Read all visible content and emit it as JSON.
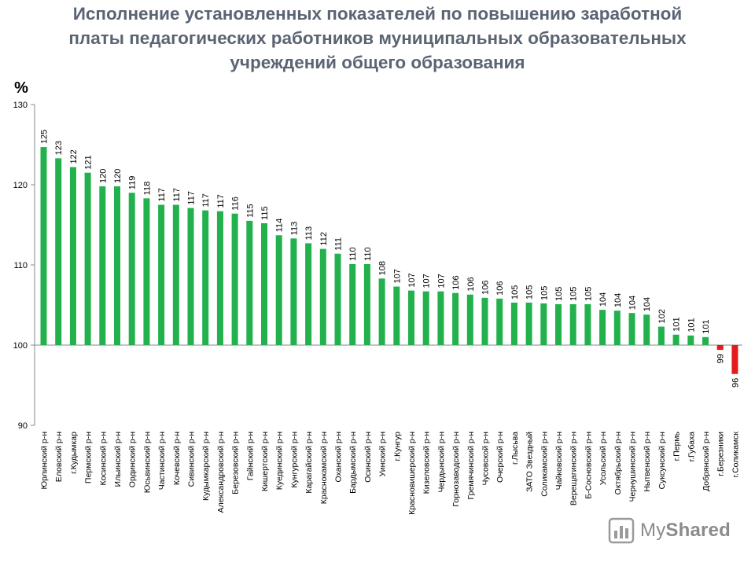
{
  "chart_data": {
    "type": "bar",
    "title": [
      "Исполнение установленных показателей по повышению заработной",
      "платы педагогических работников муниципальных образовательных",
      "учреждений общего образования"
    ],
    "ylabel": "%",
    "xlabel": "",
    "ylim": [
      90,
      130
    ],
    "yticks": [
      90,
      100,
      110,
      120,
      130
    ],
    "baseline": 100,
    "categories": [
      "Юрлинский р-н",
      "Еловский р-н",
      "г.Кудымкар",
      "Пермский р-н",
      "Косинский р-н",
      "Ильинский р-н",
      "Ординский р-н",
      "Юсьвинский р-н",
      "Частинский р-н",
      "Кочевский р-н",
      "Сивинский р-н",
      "Кудымкарский р-н",
      "Александровский р-н",
      "Березовский р-н",
      "Гайнский р-н",
      "Кишертский р-н",
      "Куединский р-н",
      "Кунгурский р-н",
      "Карагайский р-н",
      "Краснокамский р-н",
      "Оханский р-н",
      "Бардымский р-н",
      "Осинский р-н",
      "Уинский р-н",
      "г.Кунгур",
      "Красновишерский р-н",
      "Кизеловский р-н",
      "Чердынский р-н",
      "Горнозаводский р-н",
      "Гремячинский р-н",
      "Чусовской р-н",
      "Очерский р-н",
      "г.Лысьва",
      "ЗАТО Звездный",
      "Соликамский р-н",
      "Чайковский р-н",
      "Верещагинский р-н",
      "Б-Сосновский р-н",
      "Усольский р-н",
      "Октябрьский р-н",
      "Чернушинский р-н",
      "Нытвенский р-н",
      "Суксунский р-н",
      "г.Пермь",
      "г.Губаха",
      "Добрянский р-н",
      "г.Березники",
      "г.Соликамск"
    ],
    "values": [
      124.7,
      123.3,
      122.2,
      121.5,
      119.8,
      119.8,
      119.0,
      118.3,
      117.5,
      117.5,
      117.1,
      116.8,
      116.7,
      116.4,
      115.5,
      115.2,
      113.7,
      113.3,
      112.7,
      112.0,
      111.4,
      110.1,
      110.1,
      108.3,
      107.3,
      106.8,
      106.7,
      106.7,
      106.5,
      106.3,
      105.9,
      105.8,
      105.3,
      105.3,
      105.2,
      105.1,
      105.1,
      105.1,
      104.4,
      104.3,
      104.0,
      103.8,
      102.3,
      101.3,
      101.2,
      101.0,
      99.4,
      96.4
    ],
    "data_labels": [
      "125",
      "123",
      "122",
      "121",
      "120",
      "120",
      "119",
      "118",
      "117",
      "117",
      "117",
      "117",
      "117",
      "116",
      "115",
      "115",
      "114",
      "113",
      "113",
      "112",
      "111",
      "110",
      "110",
      "108",
      "107",
      "107",
      "107",
      "107",
      "106",
      "106",
      "106",
      "106",
      "105",
      "105",
      "105",
      "105",
      "105",
      "105",
      "104",
      "104",
      "104",
      "104",
      "102",
      "101",
      "101",
      "101",
      "99",
      "96"
    ],
    "colors": {
      "above": "#22b14c",
      "below": "#e31b1b",
      "axis": "#8a8a8a",
      "text": "#000000"
    }
  },
  "watermark": {
    "brand_light": "My",
    "brand_bold": "Shared"
  }
}
